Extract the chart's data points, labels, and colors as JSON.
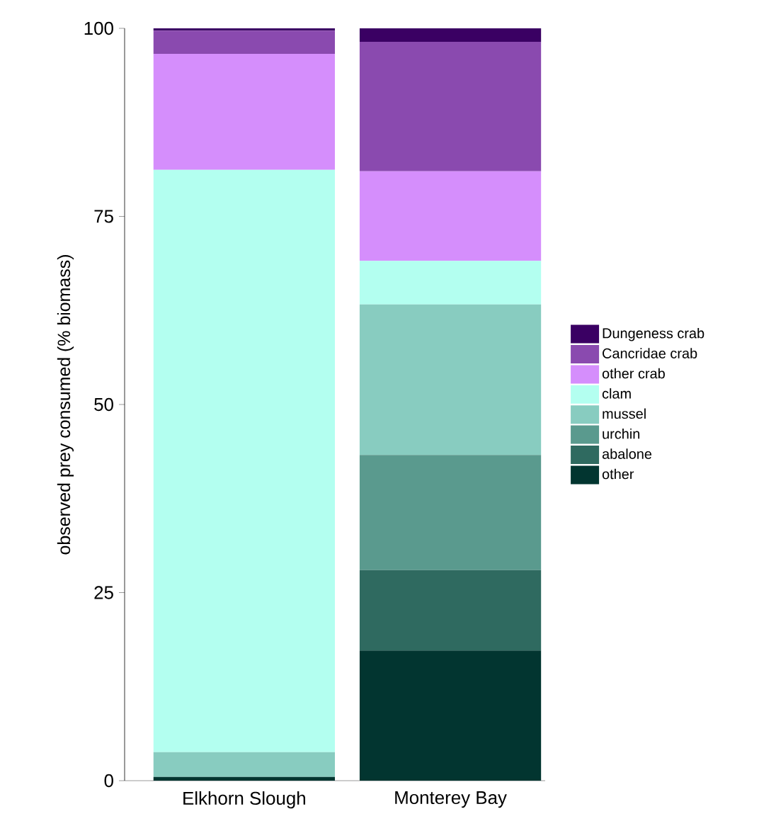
{
  "chart_data": {
    "type": "bar",
    "stacked": true,
    "ylabel": "observed prey consumed (% biomass)",
    "categories": [
      "Elkhorn Slough",
      "Monterey Bay"
    ],
    "ylim": [
      0,
      100
    ],
    "yticks": [
      0,
      25,
      50,
      75,
      100
    ],
    "legend": "right",
    "series": [
      {
        "name": "other",
        "color": "#023530",
        "values": [
          0.5,
          17.3
        ]
      },
      {
        "name": "abalone",
        "color": "#2f6a60",
        "values": [
          0,
          10.7
        ]
      },
      {
        "name": "urchin",
        "color": "#5a9a8e",
        "values": [
          0,
          15.3
        ]
      },
      {
        "name": "mussel",
        "color": "#88ccc0",
        "values": [
          3.3,
          20.0
        ]
      },
      {
        "name": "clam",
        "color": "#b3fff0",
        "values": [
          77.4,
          5.8
        ]
      },
      {
        "name": "other crab",
        "color": "#d58efc",
        "values": [
          15.4,
          11.9
        ]
      },
      {
        "name": "Cancridae crab",
        "color": "#8a4aaf",
        "values": [
          3.1,
          17.2
        ]
      },
      {
        "name": "Dungeness crab",
        "color": "#3a0063",
        "values": [
          0.3,
          1.8
        ]
      }
    ]
  }
}
